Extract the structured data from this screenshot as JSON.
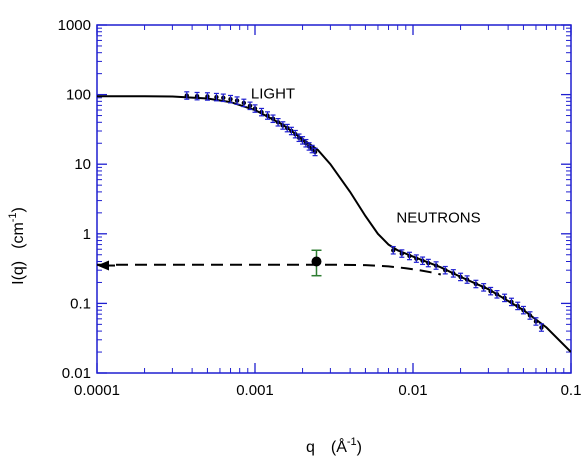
{
  "chart_data": {
    "type": "line",
    "x_scale": "log",
    "y_scale": "log",
    "xlim": [
      0.0001,
      0.1
    ],
    "ylim": [
      0.01,
      1000
    ],
    "grid": false,
    "axis_color": "#1f1fd0",
    "x_ticks": [
      {
        "value": 0.0001,
        "label": "0.0001"
      },
      {
        "value": 0.001,
        "label": "0.001"
      },
      {
        "value": 0.01,
        "label": "0.01"
      },
      {
        "value": 0.1,
        "label": "0.1"
      }
    ],
    "y_ticks": [
      {
        "value": 0.01,
        "label": "0.01"
      },
      {
        "value": 0.1,
        "label": "0.1"
      },
      {
        "value": 1,
        "label": "1"
      },
      {
        "value": 10,
        "label": "10"
      },
      {
        "value": 100,
        "label": "100"
      },
      {
        "value": 1000,
        "label": "1000"
      }
    ],
    "xlabel": {
      "main": "q",
      "unit_open": "(Å",
      "unit_exp": "-1",
      "unit_close": ")"
    },
    "ylabel": {
      "main": "I(q)",
      "unit_open": "(cm",
      "unit_exp": "-1",
      "unit_close": ")"
    },
    "annotations": [
      {
        "text": "LIGHT",
        "x": 0.0013,
        "y": 88
      },
      {
        "text": "NEUTRONS",
        "x": 0.0145,
        "y": 1.45
      }
    ],
    "series": [
      {
        "style": "solid-line",
        "color": "#000000",
        "x": [
          0.0001,
          0.0002,
          0.0003,
          0.0005,
          0.0007,
          0.001,
          0.0015,
          0.002,
          0.0025,
          0.003,
          0.004,
          0.005,
          0.006,
          0.007,
          0.008,
          0.01,
          0.015,
          0.02,
          0.03,
          0.05,
          0.07,
          0.1
        ],
        "y": [
          95,
          95,
          94,
          88,
          78,
          60,
          37,
          23,
          16,
          10,
          4.0,
          1.8,
          1.0,
          0.7,
          0.58,
          0.47,
          0.33,
          0.24,
          0.16,
          0.08,
          0.045,
          0.02
        ]
      },
      {
        "style": "dashed-line",
        "color": "#000000",
        "x": [
          0.0001,
          0.001,
          0.003,
          0.005,
          0.007,
          0.009,
          0.011,
          0.013,
          0.015
        ],
        "y": [
          0.36,
          0.36,
          0.36,
          0.355,
          0.34,
          0.32,
          0.3,
          0.28,
          0.26
        ]
      },
      {
        "style": "points-errorbars",
        "color": "#000000",
        "err_color": "#1f1fd0",
        "x": [
          0.00037,
          0.00043,
          0.0005,
          0.00057,
          0.00063,
          0.0007,
          0.00077,
          0.00085,
          0.00093,
          0.001,
          0.0011,
          0.0012,
          0.0013,
          0.0014,
          0.0015,
          0.0016,
          0.0017,
          0.0018,
          0.0019,
          0.002,
          0.0021,
          0.0022,
          0.0023,
          0.0024
        ],
        "y": [
          97,
          95,
          94,
          92,
          90,
          86,
          82,
          76,
          69,
          63,
          56,
          50,
          45,
          40,
          36,
          33,
          30,
          27,
          24,
          22,
          20,
          18,
          16.5,
          15
        ]
      },
      {
        "style": "points-errorbars",
        "color": "#000000",
        "err_color": "#1f1fd0",
        "x": [
          0.0075,
          0.0085,
          0.0095,
          0.0105,
          0.0115,
          0.0125,
          0.014,
          0.016,
          0.018,
          0.02,
          0.022,
          0.025,
          0.028,
          0.031,
          0.034,
          0.038,
          0.042,
          0.046,
          0.05,
          0.055,
          0.06,
          0.065
        ],
        "y": [
          0.58,
          0.52,
          0.48,
          0.44,
          0.41,
          0.38,
          0.35,
          0.3,
          0.27,
          0.24,
          0.22,
          0.19,
          0.17,
          0.15,
          0.135,
          0.12,
          0.105,
          0.092,
          0.08,
          0.067,
          0.055,
          0.045
        ]
      },
      {
        "style": "single-point-errorbar",
        "color": "#000000",
        "err_color": "#2e7d32",
        "x": [
          0.00245
        ],
        "y": [
          0.4
        ],
        "err_low": [
          0.25
        ],
        "err_high": [
          0.58
        ]
      }
    ],
    "arrow": {
      "from_x": 0.00013,
      "to_x": 0.0001,
      "y": 0.35
    }
  }
}
